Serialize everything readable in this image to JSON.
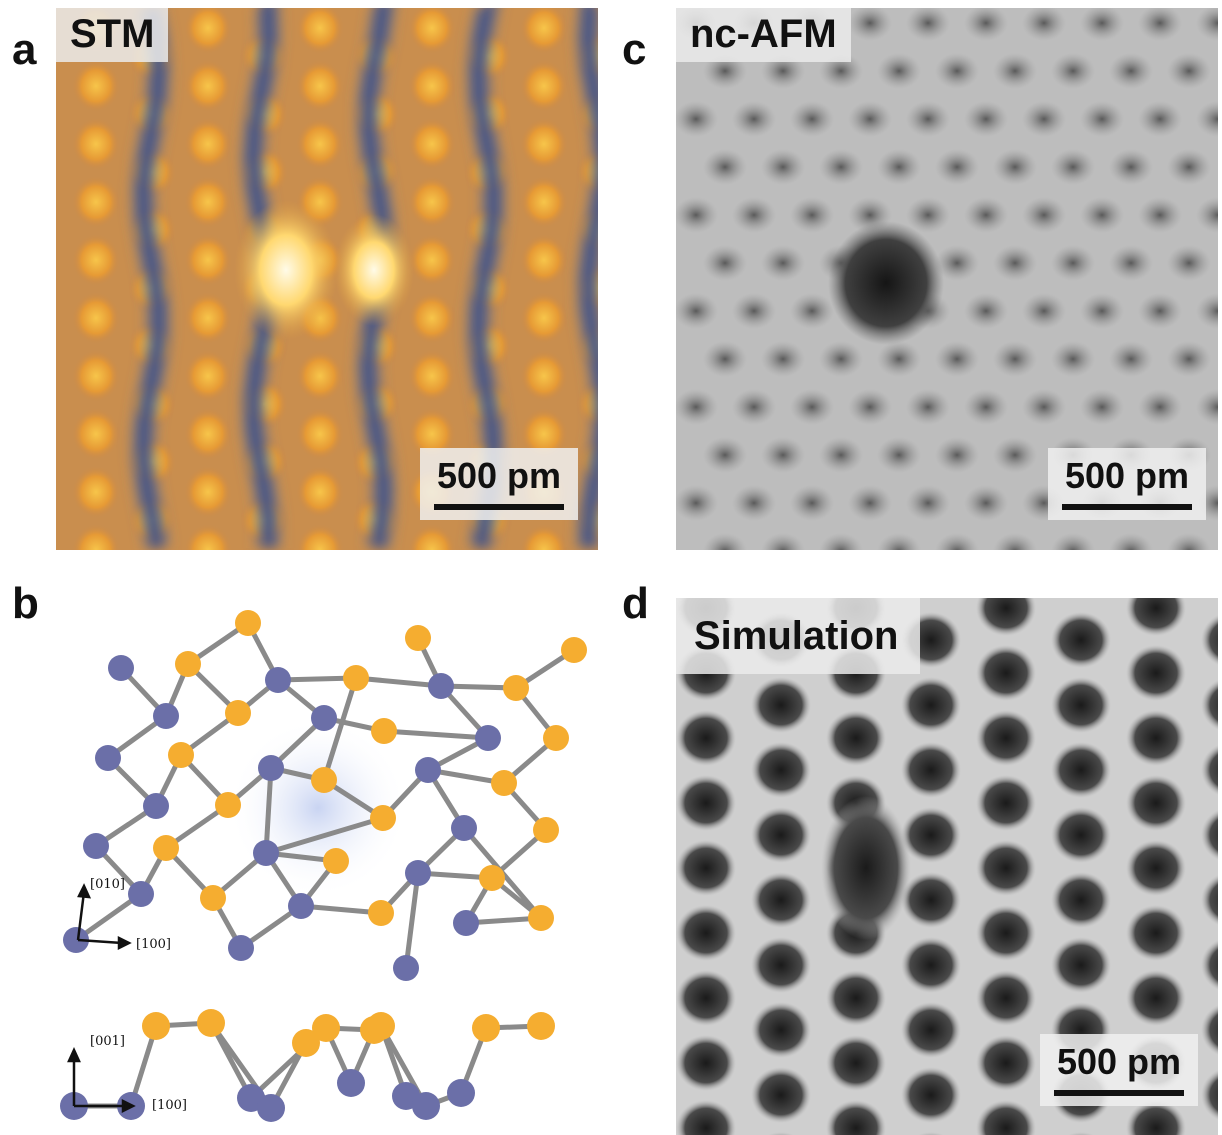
{
  "panels": {
    "a": {
      "letter": "a",
      "tag": "STM",
      "scale_label": "500 pm"
    },
    "b": {
      "letter": "b",
      "top_axes": {
        "vertical": "[010]",
        "horizontal": "[100]"
      },
      "bottom_axes": {
        "vertical": "[001]",
        "horizontal": "[100]"
      }
    },
    "c": {
      "letter": "c",
      "tag": "nc-AFM",
      "scale_label": "500 pm"
    },
    "d": {
      "letter": "d",
      "tag": "Simulation",
      "scale_label": "500 pm"
    }
  },
  "colors": {
    "atom_blue": "#6b6fa8",
    "atom_orange": "#f5ad30",
    "bond_gray": "#8a8a8a"
  }
}
